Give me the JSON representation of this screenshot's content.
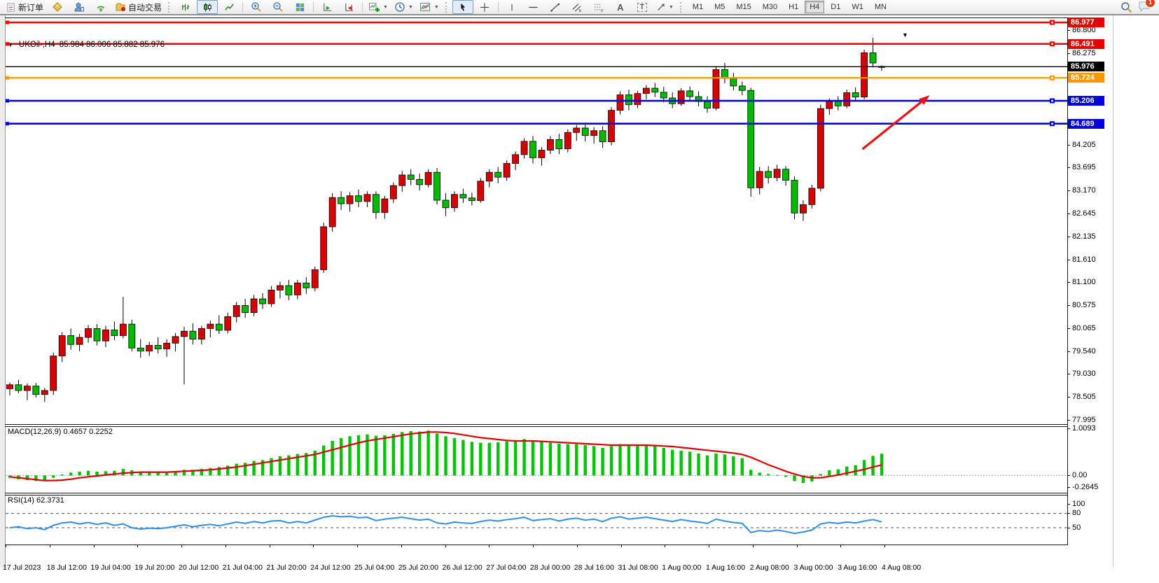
{
  "toolbar": {
    "new_order_label": "新订单",
    "auto_trading_label": "自动交易",
    "timeframes": [
      "M1",
      "M5",
      "M15",
      "M30",
      "H1",
      "H4",
      "D1",
      "W1",
      "MN"
    ],
    "active_timeframe": "H4",
    "notification_count": "1",
    "icons": {
      "caret": "▾",
      "collapse_triangle": "▼",
      "crosshair": "+",
      "vertical_line": "│",
      "horizontal_line": "─",
      "trendline": "╱",
      "text_tool": "A",
      "text_label_tool": "T",
      "arrows_tool": "↗"
    }
  },
  "chart": {
    "title": "UKOil-,H4",
    "ohlc": "85.984 86.006 85.882 85.976",
    "price_axis_ticks": [
      "86.800",
      "86.275",
      "84.205",
      "83.695",
      "83.170",
      "82.645",
      "82.135",
      "81.610",
      "81.100",
      "80.575",
      "80.065",
      "79.540",
      "79.030",
      "78.505",
      "77.995"
    ],
    "price_line_badges": [
      {
        "value": "86.977",
        "color": "#e60000"
      },
      {
        "value": "86.491",
        "color": "#e60000"
      },
      {
        "value": "85.976",
        "color": "#000000"
      },
      {
        "value": "85.724",
        "color": "#ff9800"
      },
      {
        "value": "85.206",
        "color": "#0000dd"
      },
      {
        "value": "84.689",
        "color": "#0000dd"
      }
    ],
    "date_axis": [
      "17 Jul 2023",
      "18 Jul 12:00",
      "19 Jul 04:00",
      "19 Jul 20:00",
      "20 Jul 12:00",
      "21 Jul 04:00",
      "21 Jul 20:00",
      "24 Jul 12:00",
      "25 Jul 04:00",
      "25 Jul 20:00",
      "26 Jul 12:00",
      "27 Jul 04:00",
      "28 Jul 00:00",
      "28 Jul 16:00",
      "31 Jul 08:00",
      "1 Aug 00:00",
      "1 Aug 16:00",
      "2 Aug 08:00",
      "3 Aug 00:00",
      "3 Aug 16:00",
      "4 Aug 08:00"
    ]
  },
  "macd_panel": {
    "label": "MACD(12,26,9) 0.4657 0.2252"
  },
  "rsi_panel": {
    "label": "RSI(14) 62.3731"
  },
  "chart_data": {
    "type": "candlestick",
    "symbol": "UKOil-",
    "timeframe": "H4",
    "last_ohlc": {
      "open": 85.984,
      "high": 86.006,
      "low": 85.882,
      "close": 85.976
    },
    "price_axis_range": [
      77.43,
      87.09
    ],
    "colors": {
      "bull": "#d80000",
      "bear": "#00bb00",
      "wick": "#000000",
      "macd_hist": "#00c400",
      "macd_signal": "#e00000",
      "rsi_line": "#2f8fef"
    },
    "convention": "red=up green=down",
    "hlines": [
      {
        "price": 86.977,
        "color": "#ff0000",
        "width": 2.6,
        "object": true
      },
      {
        "price": 86.491,
        "color": "#ff0000",
        "width": 2.6,
        "object": true
      },
      {
        "price": 85.976,
        "color": "#000000",
        "width": 1.4,
        "object": false
      },
      {
        "price": 85.724,
        "color": "#ff9800",
        "width": 2.2,
        "object": true
      },
      {
        "price": 85.206,
        "color": "#0000ee",
        "width": 2.6,
        "object": true
      },
      {
        "price": 84.689,
        "color": "#0000ee",
        "width": 2.6,
        "object": true
      }
    ],
    "annotation_arrow": {
      "from_bar": 97.8,
      "from_price": 84.115,
      "to_bar": 105.5,
      "to_price": 85.33,
      "color": "#ee1111"
    },
    "candles": [
      [
        78.7,
        78.84,
        78.55,
        78.79
      ],
      [
        78.79,
        78.9,
        78.6,
        78.66
      ],
      [
        78.66,
        78.82,
        78.44,
        78.76
      ],
      [
        78.76,
        78.83,
        78.5,
        78.57
      ],
      [
        78.57,
        78.72,
        78.4,
        78.66
      ],
      [
        78.66,
        79.52,
        78.56,
        79.44
      ],
      [
        79.44,
        79.98,
        79.3,
        79.9
      ],
      [
        79.9,
        80.06,
        79.58,
        79.7
      ],
      [
        79.7,
        79.94,
        79.55,
        79.86
      ],
      [
        79.86,
        80.14,
        79.74,
        80.06
      ],
      [
        80.06,
        80.16,
        79.68,
        79.78
      ],
      [
        79.78,
        80.12,
        79.64,
        80.03
      ],
      [
        80.03,
        80.22,
        79.8,
        79.9
      ],
      [
        79.9,
        80.78,
        79.84,
        80.16
      ],
      [
        80.16,
        80.26,
        79.54,
        79.62
      ],
      [
        79.62,
        79.82,
        79.4,
        79.55
      ],
      [
        79.55,
        79.76,
        79.44,
        79.68
      ],
      [
        79.68,
        79.86,
        79.5,
        79.6
      ],
      [
        79.6,
        79.82,
        79.42,
        79.73
      ],
      [
        79.73,
        79.96,
        79.54,
        79.88
      ],
      [
        79.88,
        80.1,
        78.8,
        80.0
      ],
      [
        80.0,
        80.18,
        79.7,
        79.82
      ],
      [
        79.82,
        80.12,
        79.7,
        80.06
      ],
      [
        80.06,
        80.24,
        79.86,
        80.16
      ],
      [
        80.16,
        80.36,
        79.94,
        80.02
      ],
      [
        80.02,
        80.42,
        79.95,
        80.33
      ],
      [
        80.33,
        80.66,
        80.2,
        80.58
      ],
      [
        80.58,
        80.73,
        80.3,
        80.42
      ],
      [
        80.42,
        80.82,
        80.34,
        80.73
      ],
      [
        80.73,
        80.86,
        80.5,
        80.62
      ],
      [
        80.62,
        81.02,
        80.55,
        80.93
      ],
      [
        80.93,
        81.12,
        80.74,
        81.03
      ],
      [
        81.03,
        81.16,
        80.7,
        80.82
      ],
      [
        80.82,
        81.16,
        80.72,
        81.09
      ],
      [
        81.09,
        81.22,
        80.84,
        80.98
      ],
      [
        80.98,
        81.46,
        80.9,
        81.39
      ],
      [
        81.39,
        82.45,
        81.32,
        82.36
      ],
      [
        82.36,
        83.12,
        82.25,
        83.02
      ],
      [
        83.02,
        83.16,
        82.74,
        82.88
      ],
      [
        82.88,
        83.14,
        82.7,
        83.06
      ],
      [
        83.06,
        83.2,
        82.8,
        82.93
      ],
      [
        82.93,
        83.16,
        82.8,
        83.09
      ],
      [
        83.09,
        83.16,
        82.54,
        82.68
      ],
      [
        82.68,
        83.06,
        82.54,
        82.99
      ],
      [
        82.99,
        83.36,
        82.9,
        83.29
      ],
      [
        83.29,
        83.62,
        83.15,
        83.53
      ],
      [
        83.53,
        83.66,
        83.3,
        83.43
      ],
      [
        83.43,
        83.56,
        83.18,
        83.31
      ],
      [
        83.31,
        83.66,
        83.25,
        83.59
      ],
      [
        83.59,
        83.69,
        82.86,
        82.96
      ],
      [
        82.96,
        83.12,
        82.6,
        82.79
      ],
      [
        82.79,
        83.16,
        82.7,
        83.09
      ],
      [
        83.09,
        83.22,
        82.9,
        83.01
      ],
      [
        83.01,
        83.13,
        82.84,
        82.95
      ],
      [
        82.95,
        83.46,
        82.9,
        83.39
      ],
      [
        83.39,
        83.66,
        83.25,
        83.59
      ],
      [
        83.59,
        83.71,
        83.34,
        83.48
      ],
      [
        83.48,
        83.86,
        83.4,
        83.79
      ],
      [
        83.79,
        84.06,
        83.64,
        83.99
      ],
      [
        83.99,
        84.36,
        83.9,
        84.29
      ],
      [
        84.29,
        84.41,
        83.79,
        83.92
      ],
      [
        83.92,
        84.16,
        83.74,
        84.09
      ],
      [
        84.09,
        84.41,
        84.0,
        84.33
      ],
      [
        84.33,
        84.46,
        84.0,
        84.12
      ],
      [
        84.12,
        84.56,
        84.04,
        84.49
      ],
      [
        84.49,
        84.66,
        84.3,
        84.59
      ],
      [
        84.59,
        84.71,
        84.29,
        84.42
      ],
      [
        84.42,
        84.61,
        84.24,
        84.53
      ],
      [
        84.53,
        84.63,
        84.14,
        84.28
      ],
      [
        84.28,
        85.06,
        84.2,
        84.99
      ],
      [
        84.99,
        85.42,
        84.9,
        85.34
      ],
      [
        85.34,
        85.46,
        84.99,
        85.12
      ],
      [
        85.12,
        85.43,
        85.04,
        85.37
      ],
      [
        85.37,
        85.56,
        85.24,
        85.49
      ],
      [
        85.49,
        85.61,
        85.29,
        85.4
      ],
      [
        85.4,
        85.52,
        85.17,
        85.27
      ],
      [
        85.27,
        85.4,
        85.04,
        85.14
      ],
      [
        85.14,
        85.49,
        85.09,
        85.43
      ],
      [
        85.43,
        85.53,
        85.21,
        85.3
      ],
      [
        85.3,
        85.42,
        85.08,
        85.19
      ],
      [
        85.19,
        85.31,
        84.94,
        85.04
      ],
      [
        85.04,
        85.99,
        84.99,
        85.91
      ],
      [
        85.91,
        86.06,
        85.6,
        85.71
      ],
      [
        85.71,
        85.84,
        85.44,
        85.54
      ],
      [
        85.54,
        85.64,
        85.33,
        85.44
      ],
      [
        85.44,
        85.5,
        83.04,
        83.24
      ],
      [
        83.24,
        83.71,
        83.09,
        83.61
      ],
      [
        83.61,
        83.73,
        83.34,
        83.47
      ],
      [
        83.47,
        83.76,
        83.39,
        83.66
      ],
      [
        83.66,
        83.73,
        83.29,
        83.41
      ],
      [
        83.41,
        83.5,
        82.53,
        82.67
      ],
      [
        82.67,
        82.96,
        82.49,
        82.86
      ],
      [
        82.86,
        83.31,
        82.77,
        83.23
      ],
      [
        83.23,
        85.12,
        83.16,
        85.03
      ],
      [
        85.03,
        85.26,
        84.89,
        85.19
      ],
      [
        85.19,
        85.31,
        84.99,
        85.09
      ],
      [
        85.09,
        85.46,
        85.04,
        85.39
      ],
      [
        85.39,
        85.51,
        85.19,
        85.29
      ],
      [
        85.29,
        86.36,
        85.24,
        86.29
      ],
      [
        86.29,
        86.63,
        85.96,
        86.06
      ],
      [
        85.984,
        86.006,
        85.882,
        85.976
      ]
    ],
    "macd": {
      "params": "12,26,9",
      "current_hist": 0.4657,
      "current_signal": 0.2252,
      "range": [
        -0.2645,
        1.0093
      ],
      "axis_ticks": [
        {
          "label": "1.0093",
          "value": 1.0093
        },
        {
          "label": "0.00",
          "value": 0.0
        },
        {
          "label": "-0.2645",
          "value": -0.2645
        }
      ],
      "hist": [
        -0.05,
        -0.08,
        -0.1,
        -0.12,
        -0.11,
        -0.05,
        0.02,
        0.06,
        0.08,
        0.1,
        0.08,
        0.09,
        0.1,
        0.14,
        0.11,
        0.08,
        0.07,
        0.06,
        0.07,
        0.09,
        0.12,
        0.12,
        0.14,
        0.16,
        0.18,
        0.21,
        0.25,
        0.27,
        0.31,
        0.33,
        0.37,
        0.41,
        0.43,
        0.46,
        0.48,
        0.53,
        0.64,
        0.74,
        0.8,
        0.84,
        0.86,
        0.88,
        0.85,
        0.86,
        0.89,
        0.93,
        0.95,
        0.94,
        0.96,
        0.9,
        0.84,
        0.8,
        0.76,
        0.72,
        0.7,
        0.7,
        0.71,
        0.73,
        0.75,
        0.78,
        0.75,
        0.72,
        0.7,
        0.68,
        0.67,
        0.67,
        0.65,
        0.63,
        0.59,
        0.63,
        0.67,
        0.66,
        0.65,
        0.65,
        0.63,
        0.59,
        0.55,
        0.53,
        0.51,
        0.47,
        0.43,
        0.47,
        0.45,
        0.41,
        0.37,
        0.12,
        0.06,
        0.03,
        0.01,
        -0.03,
        -0.12,
        -0.16,
        -0.13,
        0.03,
        0.11,
        0.13,
        0.19,
        0.22,
        0.33,
        0.42,
        0.4657
      ],
      "signal": [
        -0.03,
        -0.05,
        -0.07,
        -0.09,
        -0.11,
        -0.11,
        -0.1,
        -0.08,
        -0.05,
        -0.03,
        -0.01,
        0.01,
        0.03,
        0.05,
        0.06,
        0.07,
        0.07,
        0.07,
        0.07,
        0.08,
        0.09,
        0.1,
        0.11,
        0.12,
        0.14,
        0.16,
        0.18,
        0.21,
        0.24,
        0.27,
        0.3,
        0.33,
        0.36,
        0.39,
        0.42,
        0.45,
        0.5,
        0.55,
        0.6,
        0.65,
        0.7,
        0.74,
        0.77,
        0.8,
        0.83,
        0.86,
        0.89,
        0.91,
        0.93,
        0.93,
        0.92,
        0.9,
        0.87,
        0.84,
        0.81,
        0.79,
        0.77,
        0.75,
        0.74,
        0.74,
        0.74,
        0.73,
        0.72,
        0.71,
        0.7,
        0.69,
        0.68,
        0.67,
        0.66,
        0.65,
        0.65,
        0.65,
        0.65,
        0.65,
        0.64,
        0.63,
        0.62,
        0.6,
        0.58,
        0.56,
        0.54,
        0.52,
        0.5,
        0.48,
        0.45,
        0.39,
        0.31,
        0.23,
        0.16,
        0.09,
        0.03,
        -0.02,
        -0.05,
        -0.05,
        -0.02,
        0.01,
        0.05,
        0.09,
        0.13,
        0.18,
        0.2252
      ]
    },
    "rsi": {
      "period": 14,
      "current": 62.3731,
      "range": [
        0,
        100
      ],
      "levels": [
        80,
        50
      ],
      "axis_ticks": [
        {
          "label": "100",
          "value": 100
        },
        {
          "label": "80",
          "value": 80
        },
        {
          "label": "50",
          "value": 50
        }
      ],
      "values": [
        50,
        52,
        48,
        50,
        46,
        55,
        60,
        62,
        58,
        61,
        57,
        60,
        55,
        58,
        50,
        47,
        49,
        48,
        50,
        53,
        56,
        52,
        55,
        57,
        54,
        58,
        62,
        59,
        63,
        60,
        64,
        65,
        60,
        63,
        60,
        66,
        72,
        75,
        73,
        74,
        71,
        72,
        65,
        68,
        70,
        72,
        69,
        66,
        68,
        60,
        58,
        62,
        60,
        59,
        63,
        66,
        64,
        67,
        69,
        72,
        65,
        67,
        69,
        64,
        68,
        70,
        66,
        68,
        63,
        70,
        73,
        68,
        70,
        72,
        69,
        66,
        63,
        67,
        64,
        62,
        59,
        68,
        64,
        61,
        59,
        40,
        44,
        42,
        45,
        42,
        38,
        41,
        45,
        58,
        61,
        59,
        62,
        60,
        64,
        67,
        62.37
      ]
    }
  }
}
